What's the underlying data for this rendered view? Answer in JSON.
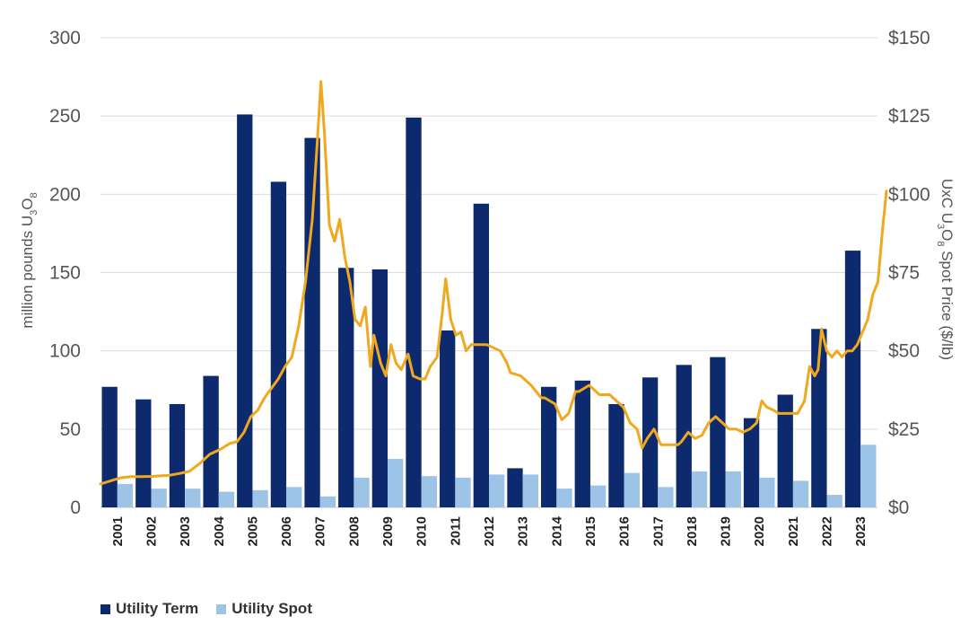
{
  "chart_data": {
    "type": "bar",
    "categories": [
      "2001",
      "2002",
      "2003",
      "2004",
      "2005",
      "2006",
      "2007",
      "2008",
      "2009",
      "2010",
      "2011",
      "2012",
      "2013",
      "2014",
      "2015",
      "2016",
      "2017",
      "2018",
      "2019",
      "2020",
      "2021",
      "2022",
      "2023"
    ],
    "series": [
      {
        "name": "Utility Term",
        "color": "#0d2a6e",
        "axis": "left",
        "values": [
          77,
          69,
          66,
          84,
          251,
          208,
          236,
          153,
          152,
          249,
          113,
          194,
          25,
          77,
          81,
          66,
          83,
          91,
          96,
          57,
          72,
          114,
          164
        ]
      },
      {
        "name": "Utility Spot",
        "color": "#9dc3e6",
        "axis": "left",
        "values": [
          15,
          12,
          12,
          10,
          11,
          13,
          7,
          19,
          31,
          20,
          19,
          21,
          21,
          12,
          14,
          22,
          13,
          23,
          23,
          19,
          17,
          8,
          40
        ]
      }
    ],
    "line_series": {
      "name": "UxC U3O8 Spot Price",
      "color": "#f0a81e",
      "axis": "right",
      "x_start": 2001.0,
      "x_end": 2024.0,
      "points": [
        [
          2001.0,
          7.5
        ],
        [
          2001.3,
          8.5
        ],
        [
          2001.6,
          9.5
        ],
        [
          2001.9,
          9.8
        ],
        [
          2002.2,
          9.8
        ],
        [
          2002.5,
          9.9
        ],
        [
          2002.8,
          10.1
        ],
        [
          2003.0,
          10.2
        ],
        [
          2003.3,
          10.8
        ],
        [
          2003.6,
          11.5
        ],
        [
          2003.9,
          14.0
        ],
        [
          2004.2,
          17.0
        ],
        [
          2004.5,
          18.5
        ],
        [
          2004.8,
          20.5
        ],
        [
          2005.0,
          21.0
        ],
        [
          2005.2,
          24.0
        ],
        [
          2005.4,
          29.0
        ],
        [
          2005.6,
          31.0
        ],
        [
          2005.8,
          35.0
        ],
        [
          2006.0,
          38.0
        ],
        [
          2006.2,
          41.0
        ],
        [
          2006.4,
          45.0
        ],
        [
          2006.6,
          48.0
        ],
        [
          2006.8,
          58.0
        ],
        [
          2007.0,
          72.0
        ],
        [
          2007.2,
          92.0
        ],
        [
          2007.35,
          118.0
        ],
        [
          2007.45,
          136.0
        ],
        [
          2007.55,
          120.0
        ],
        [
          2007.7,
          90.0
        ],
        [
          2007.85,
          85.0
        ],
        [
          2008.0,
          92.0
        ],
        [
          2008.15,
          80.0
        ],
        [
          2008.3,
          72.0
        ],
        [
          2008.45,
          60.0
        ],
        [
          2008.6,
          58.0
        ],
        [
          2008.75,
          64.0
        ],
        [
          2008.9,
          45.0
        ],
        [
          2009.0,
          55.0
        ],
        [
          2009.2,
          46.0
        ],
        [
          2009.35,
          42.0
        ],
        [
          2009.5,
          52.0
        ],
        [
          2009.65,
          46.0
        ],
        [
          2009.8,
          44.0
        ],
        [
          2010.0,
          49.0
        ],
        [
          2010.15,
          42.0
        ],
        [
          2010.35,
          41.0
        ],
        [
          2010.5,
          41.0
        ],
        [
          2010.65,
          45.0
        ],
        [
          2010.85,
          48.0
        ],
        [
          2011.0,
          62.0
        ],
        [
          2011.1,
          73.0
        ],
        [
          2011.25,
          60.0
        ],
        [
          2011.4,
          55.0
        ],
        [
          2011.55,
          56.0
        ],
        [
          2011.7,
          50.0
        ],
        [
          2011.85,
          52.0
        ],
        [
          2012.0,
          52.0
        ],
        [
          2012.3,
          52.0
        ],
        [
          2012.5,
          51.0
        ],
        [
          2012.7,
          50.0
        ],
        [
          2012.9,
          46.0
        ],
        [
          2013.0,
          43.0
        ],
        [
          2013.3,
          42.0
        ],
        [
          2013.6,
          39.0
        ],
        [
          2013.9,
          35.0
        ],
        [
          2014.0,
          35.0
        ],
        [
          2014.3,
          33.0
        ],
        [
          2014.5,
          28.0
        ],
        [
          2014.7,
          30.0
        ],
        [
          2014.9,
          37.0
        ],
        [
          2015.0,
          37.0
        ],
        [
          2015.3,
          39.0
        ],
        [
          2015.6,
          36.0
        ],
        [
          2015.9,
          36.0
        ],
        [
          2016.0,
          35.0
        ],
        [
          2016.3,
          32.0
        ],
        [
          2016.5,
          27.0
        ],
        [
          2016.7,
          25.0
        ],
        [
          2016.85,
          19.0
        ],
        [
          2017.0,
          22.0
        ],
        [
          2017.2,
          25.0
        ],
        [
          2017.4,
          20.0
        ],
        [
          2017.6,
          20.0
        ],
        [
          2017.9,
          20.0
        ],
        [
          2018.0,
          21.0
        ],
        [
          2018.2,
          24.0
        ],
        [
          2018.4,
          22.0
        ],
        [
          2018.6,
          23.0
        ],
        [
          2018.8,
          27.0
        ],
        [
          2019.0,
          29.0
        ],
        [
          2019.2,
          27.0
        ],
        [
          2019.4,
          25.0
        ],
        [
          2019.6,
          25.0
        ],
        [
          2019.8,
          24.0
        ],
        [
          2020.0,
          25.0
        ],
        [
          2020.2,
          27.0
        ],
        [
          2020.35,
          34.0
        ],
        [
          2020.5,
          32.0
        ],
        [
          2020.7,
          31.0
        ],
        [
          2020.85,
          30.0
        ],
        [
          2021.0,
          30.0
        ],
        [
          2021.2,
          30.0
        ],
        [
          2021.4,
          30.0
        ],
        [
          2021.6,
          34.0
        ],
        [
          2021.75,
          45.0
        ],
        [
          2021.9,
          42.0
        ],
        [
          2022.0,
          44.0
        ],
        [
          2022.1,
          57.0
        ],
        [
          2022.25,
          50.0
        ],
        [
          2022.4,
          48.0
        ],
        [
          2022.55,
          50.0
        ],
        [
          2022.7,
          48.0
        ],
        [
          2022.85,
          50.0
        ],
        [
          2023.0,
          50.0
        ],
        [
          2023.15,
          52.0
        ],
        [
          2023.3,
          56.0
        ],
        [
          2023.45,
          60.0
        ],
        [
          2023.6,
          68.0
        ],
        [
          2023.75,
          72.0
        ],
        [
          2023.88,
          88.0
        ],
        [
          2024.0,
          101.0
        ]
      ]
    },
    "left_axis": {
      "label_main": "million pounds U",
      "label_sub1": "3",
      "label_mid": "O",
      "label_sub2": "8",
      "ylim": [
        0,
        300
      ],
      "ticks": [
        "0",
        "50",
        "100",
        "150",
        "200",
        "250",
        "300"
      ]
    },
    "right_axis": {
      "label_main": "UxC U",
      "label_sub1": "3",
      "label_mid": "O",
      "label_sub2": "8",
      "label_end": " Spot Price ($/lb)",
      "ylim": [
        0,
        150
      ],
      "ticks": [
        "$0",
        "$25",
        "$50",
        "$75",
        "$100",
        "$125",
        "$150"
      ]
    },
    "grid": true,
    "legend_position": "bottom-left"
  },
  "legend": {
    "term_label": "Utility Term",
    "spot_label": "Utility Spot",
    "term_color": "#0d2a6e",
    "spot_color": "#9dc3e6"
  }
}
